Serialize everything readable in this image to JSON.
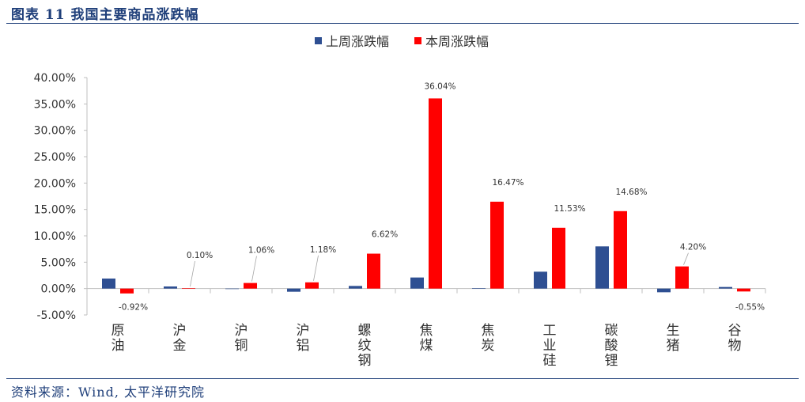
{
  "header": {
    "title": "图表 11 我国主要商品涨跌幅"
  },
  "footer": {
    "source": "资料来源：Wind, 太平洋研究院"
  },
  "colors": {
    "prev_week": "#2e4f92",
    "this_week": "#ff0000",
    "frame": "#1f3f7a"
  },
  "chart_data": {
    "type": "bar",
    "categories": [
      "原油",
      "沪金",
      "沪铜",
      "沪铝",
      "螺纹钢",
      "焦煤",
      "焦炭",
      "工业硅",
      "碳酸锂",
      "生猪",
      "谷物"
    ],
    "series": [
      {
        "name": "上周涨跌幅",
        "values": [
          1.9,
          0.4,
          0.0,
          -0.6,
          0.5,
          2.1,
          0.1,
          3.2,
          8.0,
          -0.7,
          0.3
        ]
      },
      {
        "name": "本周涨跌幅",
        "values": [
          -0.92,
          0.1,
          1.06,
          1.18,
          6.62,
          36.04,
          16.47,
          11.53,
          14.68,
          4.2,
          -0.55
        ]
      }
    ],
    "data_labels": [
      "-0.92%",
      "0.10%",
      "1.06%",
      "1.18%",
      "6.62%",
      "36.04%",
      "16.47%",
      "11.53%",
      "14.68%",
      "4.20%",
      "-0.55%"
    ],
    "y_ticks": [
      "40.00%",
      "35.00%",
      "30.00%",
      "25.00%",
      "20.00%",
      "15.00%",
      "10.00%",
      "5.00%",
      "0.00%",
      "-5.00%"
    ],
    "ylim": [
      -5,
      40
    ],
    "legend_position": "top",
    "grid": false
  }
}
